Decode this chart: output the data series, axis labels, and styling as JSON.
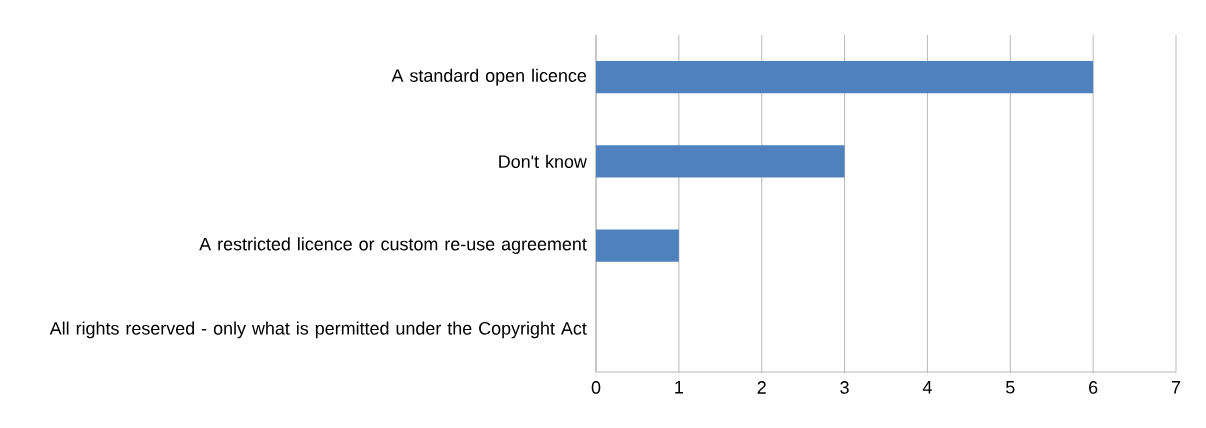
{
  "chart_data": {
    "type": "bar",
    "orientation": "horizontal",
    "categories": [
      "A standard open licence",
      "Don't know",
      "A restricted licence or custom re-use agreement",
      "All rights reserved - only what is permitted under the Copyright Act"
    ],
    "values": [
      6,
      3,
      1,
      0
    ],
    "color": "#4f81bd",
    "xlim": [
      0,
      7
    ],
    "xticks": [
      0,
      1,
      2,
      3,
      4,
      5,
      6,
      7
    ],
    "grid": "x"
  }
}
